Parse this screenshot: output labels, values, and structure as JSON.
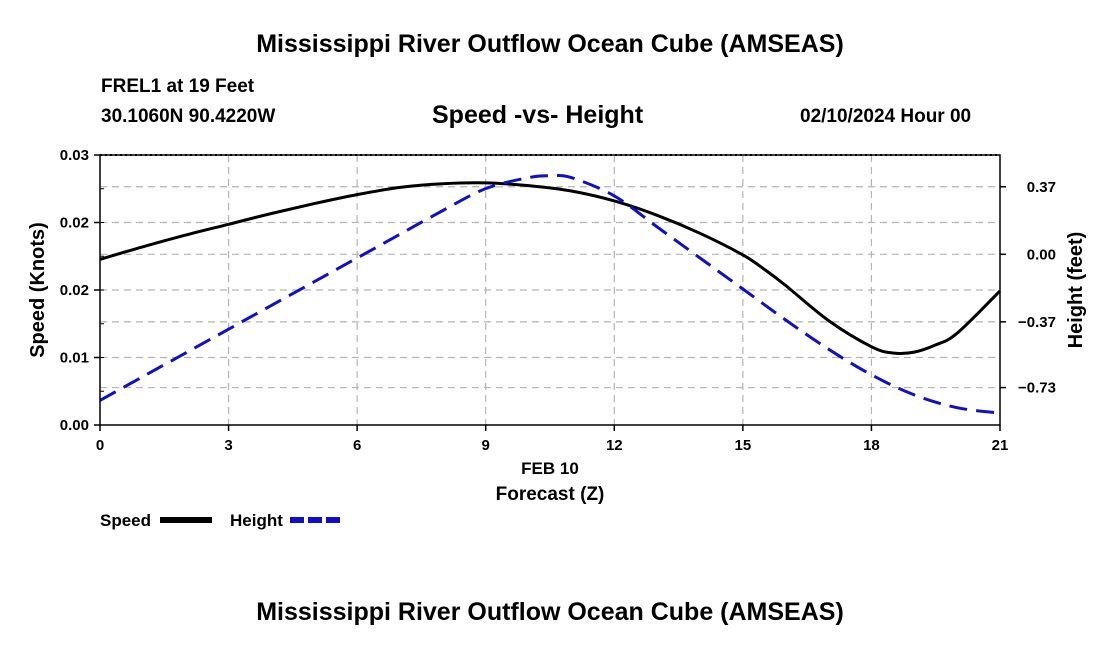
{
  "header": {
    "title": "Mississippi River Outflow Ocean Cube (AMSEAS)",
    "station": "FREL1 at 19 Feet",
    "coords": "30.1060N  90.4220W",
    "date": "02/10/2024 Hour 00"
  },
  "footer": {
    "title": "Mississippi River Outflow Ocean Cube (AMSEAS)"
  },
  "colors": {
    "speed": "#000000",
    "height": "#1010c8",
    "grid": "#b4b4b4"
  },
  "chart_data": {
    "type": "line",
    "title": "Speed -vs- Height",
    "xlabel": "Forecast (Z)",
    "xlabel_date": "FEB 10",
    "ylabel": "Speed (Knots)",
    "y2label": "Height (feet)",
    "xlim": [
      0,
      21
    ],
    "ylim": [
      0,
      0.03
    ],
    "y2lim": [
      -0.935,
      0.544
    ],
    "x_ticks": [
      0,
      3,
      6,
      9,
      12,
      15,
      18,
      21
    ],
    "x_tick_labels": [
      "0",
      "3",
      "6",
      "9",
      "12",
      "15",
      "18",
      "21"
    ],
    "y_ticks": [
      0,
      0.0075,
      0.015,
      0.0225,
      0.03
    ],
    "y_tick_labels": [
      "0.00",
      "0.01",
      "0.02",
      "0.02",
      "0.03"
    ],
    "y2_ticks": [
      0.37,
      0,
      -0.37,
      -0.73
    ],
    "y2_tick_labels": [
      "0.37",
      "0.00",
      "−0.37",
      "−0.73"
    ],
    "grid": true,
    "series": [
      {
        "name": "Speed",
        "axis": "left",
        "style": "solid",
        "x": [
          0,
          1,
          2,
          3,
          4,
          5,
          6,
          7,
          8,
          9,
          10,
          11,
          12,
          13,
          14,
          15,
          15.5,
          16,
          17,
          18,
          18.5,
          19,
          19.5,
          20,
          21
        ],
        "values": [
          0.0184,
          0.0198,
          0.0211,
          0.0223,
          0.0235,
          0.0246,
          0.0256,
          0.0264,
          0.0268,
          0.0269,
          0.0266,
          0.026,
          0.0249,
          0.0233,
          0.0213,
          0.0189,
          0.0173,
          0.0155,
          0.0116,
          0.0087,
          0.008,
          0.0081,
          0.0089,
          0.0102,
          0.0149
        ]
      },
      {
        "name": "Height",
        "axis": "right",
        "style": "dashed",
        "x": [
          0,
          1,
          2,
          3,
          4,
          5,
          6,
          7,
          8,
          9,
          10,
          10.5,
          11,
          12,
          13,
          14,
          15,
          16,
          17,
          18,
          19,
          20,
          21
        ],
        "values": [
          -0.8,
          -0.67,
          -0.54,
          -0.41,
          -0.28,
          -0.15,
          -0.02,
          0.11,
          0.24,
          0.36,
          0.42,
          0.43,
          0.42,
          0.32,
          0.15,
          -0.02,
          -0.19,
          -0.36,
          -0.52,
          -0.66,
          -0.77,
          -0.84,
          -0.87
        ]
      }
    ],
    "legend": [
      {
        "label": "Speed",
        "series": "Speed"
      },
      {
        "label": "Height",
        "series": "Height"
      }
    ]
  }
}
